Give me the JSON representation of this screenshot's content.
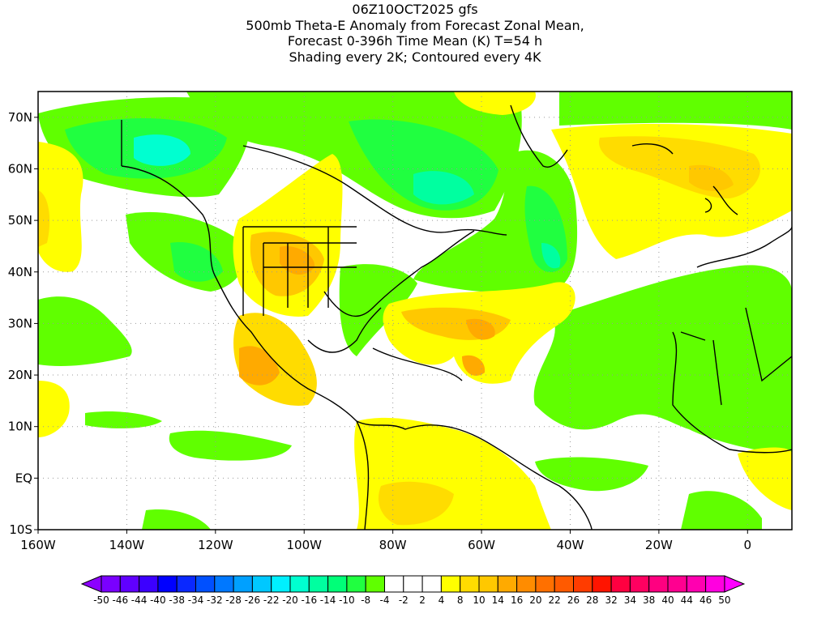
{
  "titles": [
    "06Z10OCT2025 gfs",
    "500mb Theta-E Anomaly from Forecast Zonal Mean,",
    "Forecast 0-396h Time Mean (K) T=54 h",
    "Shading every 2K; Contoured every 4K"
  ],
  "map": {
    "lon_range": [
      -160,
      10
    ],
    "lat_range": [
      -10,
      75
    ],
    "lat_ticks": [
      {
        "v": 70,
        "label": "70N"
      },
      {
        "v": 60,
        "label": "60N"
      },
      {
        "v": 50,
        "label": "50N"
      },
      {
        "v": 40,
        "label": "40N"
      },
      {
        "v": 30,
        "label": "30N"
      },
      {
        "v": 20,
        "label": "20N"
      },
      {
        "v": 10,
        "label": "10N"
      },
      {
        "v": 0,
        "label": "EQ"
      },
      {
        "v": -10,
        "label": "10S"
      }
    ],
    "lon_ticks": [
      {
        "v": -160,
        "label": "160W"
      },
      {
        "v": -140,
        "label": "140W"
      },
      {
        "v": -120,
        "label": "120W"
      },
      {
        "v": -100,
        "label": "100W"
      },
      {
        "v": -80,
        "label": "80W"
      },
      {
        "v": -60,
        "label": "60W"
      },
      {
        "v": -40,
        "label": "40W"
      },
      {
        "v": -20,
        "label": "20W"
      },
      {
        "v": 0,
        "label": "0"
      }
    ]
  },
  "colorbar": {
    "labels": [
      "-50",
      "-46",
      "-44",
      "-40",
      "-38",
      "-34",
      "-32",
      "-28",
      "-26",
      "-22",
      "-20",
      "-16",
      "-14",
      "-10",
      "-8",
      "-4",
      "-2",
      "2",
      "4",
      "8",
      "10",
      "14",
      "16",
      "20",
      "22",
      "26",
      "28",
      "32",
      "34",
      "38",
      "40",
      "44",
      "46",
      "50"
    ],
    "colors": [
      "#7a00ff",
      "#6000ff",
      "#3c00ff",
      "#0000ff",
      "#0a28ff",
      "#0050ff",
      "#0078ff",
      "#00a0ff",
      "#00c8ff",
      "#00f0ff",
      "#00ffd0",
      "#00ffa0",
      "#00ff78",
      "#20ff40",
      "#60ff00",
      "#ffffff",
      "#ffffff",
      "#ffffff",
      "#ffff00",
      "#ffdc00",
      "#ffc800",
      "#ffaa00",
      "#ff8c00",
      "#ff7000",
      "#ff5a00",
      "#ff3c00",
      "#ff1400",
      "#ff0040",
      "#ff0060",
      "#ff0080",
      "#ff0090",
      "#ff00b0",
      "#ff00e0"
    ],
    "low_color": "#8c00ff",
    "high_color": "#ff00ff"
  }
}
